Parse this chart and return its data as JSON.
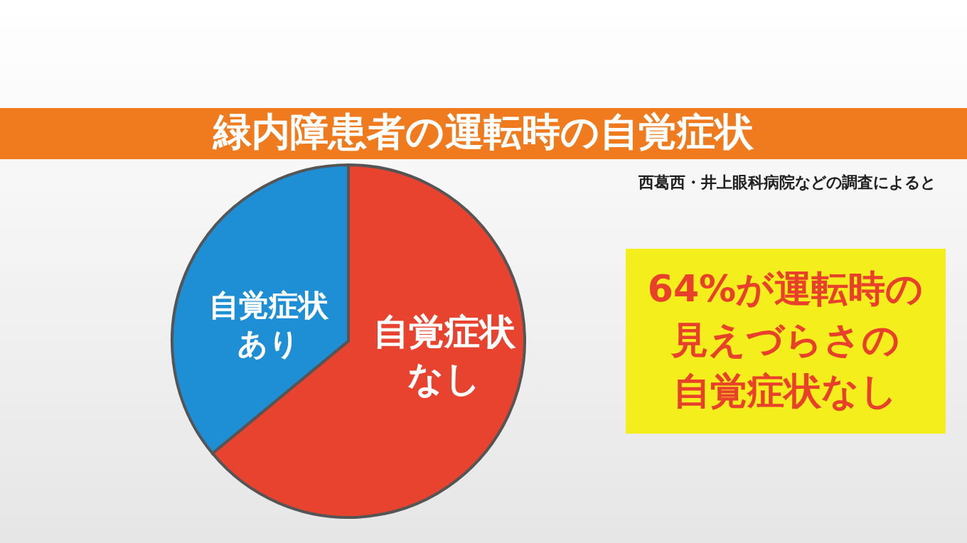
{
  "chart_data": {
    "type": "pie",
    "title": "緑内障患者の運転時の自覚症状",
    "categories": [
      "自覚症状あり",
      "自覚症状なし"
    ],
    "values": [
      36,
      64
    ],
    "colors": [
      "#1e8fd5",
      "#e8432e"
    ],
    "annotations": [
      "西葛西・井上眼科病院などの調査によると",
      "64%が運転時の",
      "見えづらさの",
      "自覚症状なし"
    ]
  }
}
